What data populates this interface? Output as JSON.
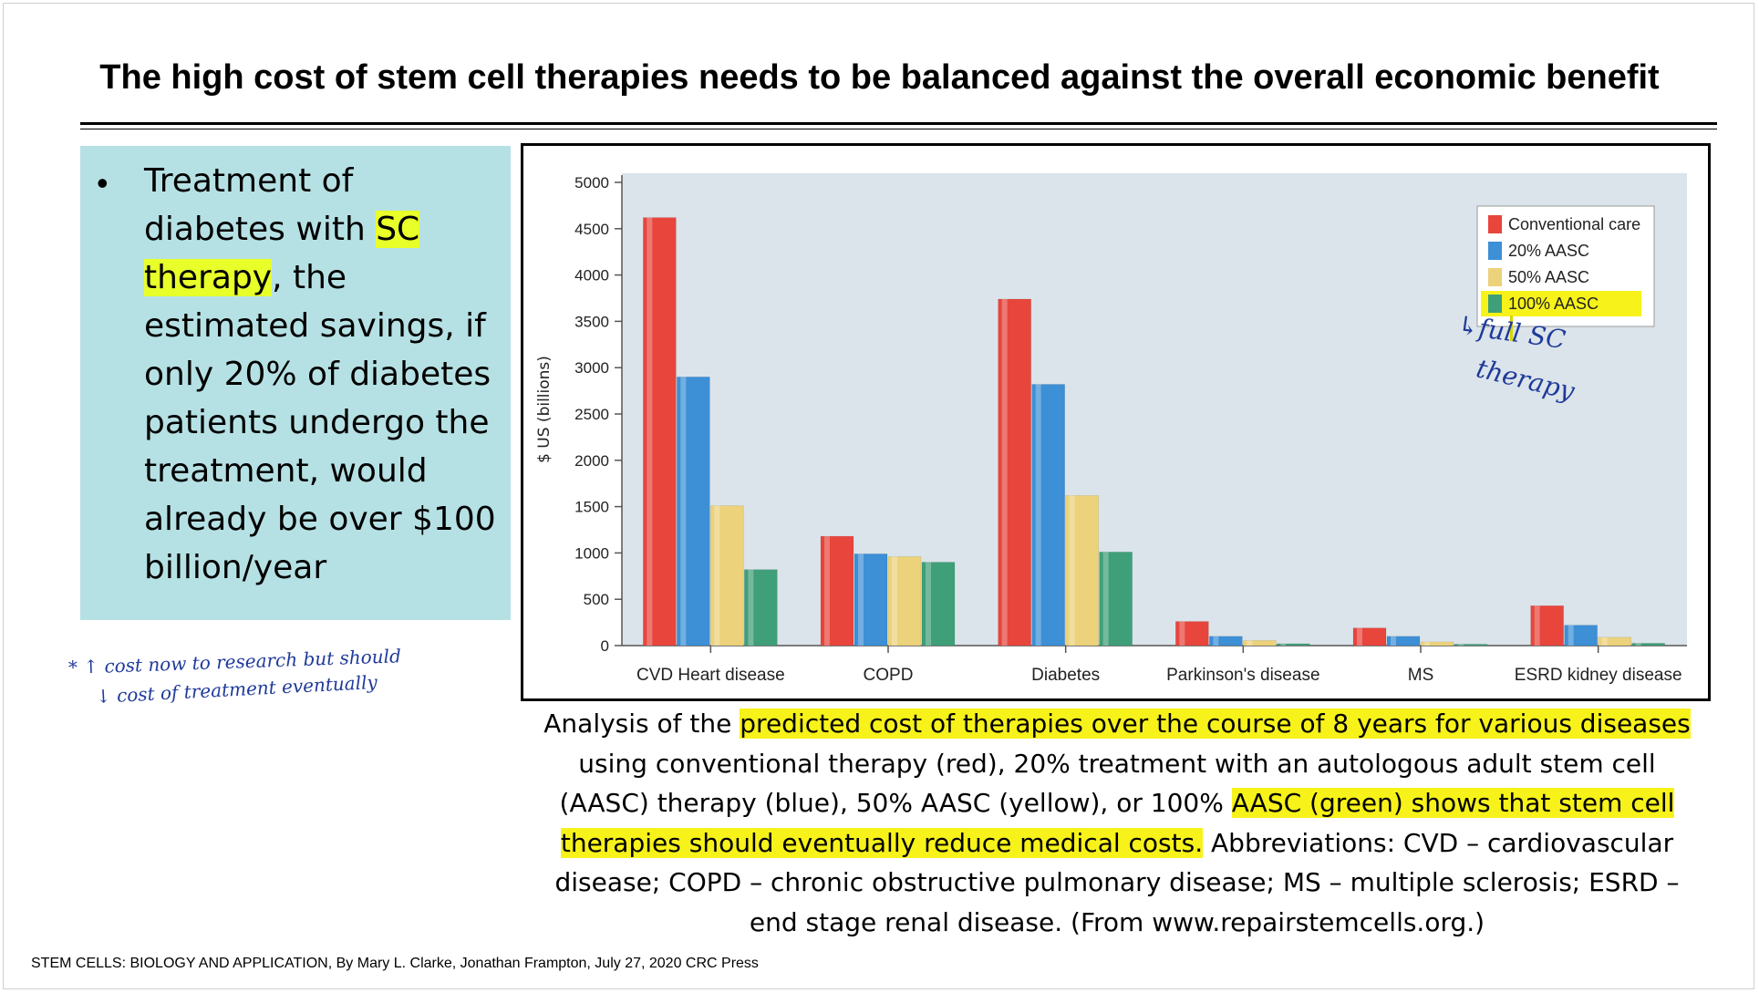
{
  "slide": {
    "title": "The high cost of stem cell therapies needs to be balanced against the overall economic benefit",
    "bullet_parts": [
      "Treatment of diabetes with ",
      "SC therapy",
      ", the estimated savings, if only 20% of diabetes patients undergo the treatment, would already be over $100 billion/year"
    ],
    "bullet_symbol": "•",
    "note_line1": "* ↑ cost now to research but should",
    "note_line2": "↓ cost of treatment eventually",
    "handwritten_1": "↳full SC",
    "handwritten_2": "therapy",
    "caption_parts": [
      {
        "text": "Analysis of the ",
        "highlight": false
      },
      {
        "text": "predicted cost of therapies over the course of 8 years for various diseases ",
        "highlight": true
      },
      {
        "text": "using conventional therapy (red), 20% treatment with an autologous adult stem cell (AASC) therapy (blue), 50% AASC (yellow), or 100% ",
        "highlight": false
      },
      {
        "text": "AASC (green) shows that stem cell therapies should eventually reduce medical costs.",
        "highlight": true
      },
      {
        "text": " Abbreviations: CVD – cardiovascular disease; COPD – chronic obstructive pulmonary disease; MS – multiple sclerosis; ESRD – end stage renal disease. (From www.repairstemcells.org.)",
        "highlight": false
      }
    ],
    "footer": "STEM CELLS: BIOLOGY AND APPLICATION, By Mary L. Clarke, Jonathan Frampton, July 27, 2020 CRC Press",
    "highlight_color": "#f7f21a"
  },
  "chart_data": {
    "type": "bar",
    "ylabel": "$ US (billions)",
    "xlabel": "",
    "ylim": [
      0,
      5000
    ],
    "yticks": [
      0,
      500,
      1000,
      1500,
      2000,
      2500,
      3000,
      3500,
      4000,
      4500,
      5000
    ],
    "categories": [
      "CVD Heart disease",
      "COPD",
      "Diabetes",
      "Parkinson's disease",
      "MS",
      "ESRD kidney disease"
    ],
    "series": [
      {
        "name": "Conventional care",
        "color": "#e8453c",
        "values": [
          4620,
          1180,
          3740,
          260,
          190,
          430
        ]
      },
      {
        "name": "20% AASC",
        "color": "#3d8fd6",
        "values": [
          2900,
          990,
          2820,
          100,
          100,
          220
        ]
      },
      {
        "name": "50% AASC",
        "color": "#ecd27a",
        "values": [
          1510,
          960,
          1620,
          55,
          40,
          90
        ]
      },
      {
        "name": "100% AASC",
        "color": "#3f9f78",
        "values": [
          820,
          900,
          1010,
          20,
          15,
          25
        ]
      }
    ],
    "legend_position": "top-right",
    "highlighted_legend_entry": "100% AASC",
    "plot_background": "#dbe4ea",
    "grid": false
  }
}
